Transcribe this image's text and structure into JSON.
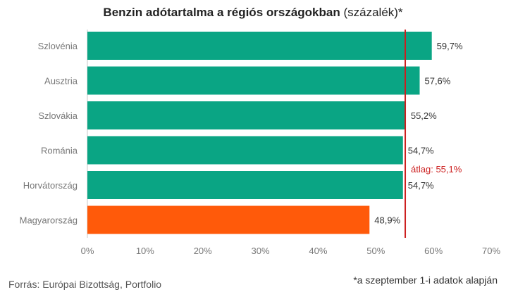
{
  "title": {
    "bold": "Benzin adótartalma a régiós országokban",
    "normal": "(százalék)*"
  },
  "source": "Forrás: Európai Bizottság, Portfolio",
  "footnote": "*a szeptember 1-i adatok alapján",
  "colors": {
    "bar": "#0aa584",
    "highlight": "#ff5a0a",
    "average_line": "#cc1f1f",
    "axis_text": "#777777",
    "label_text": "#333333"
  },
  "chart_data": {
    "type": "bar",
    "orientation": "horizontal",
    "title": "Benzin adótartalma a régiós országokban (százalék)*",
    "categories": [
      "Szlovénia",
      "Ausztria",
      "Szlovákia",
      "Románia",
      "Horvátország",
      "Magyarország"
    ],
    "values": [
      59.7,
      57.6,
      55.2,
      54.7,
      54.7,
      48.9
    ],
    "value_labels": [
      "59,7%",
      "57,6%",
      "55,2%",
      "54,7%",
      "54,7%",
      "48,9%"
    ],
    "highlight_category": "Magyarország",
    "xlim": [
      0,
      70
    ],
    "x_ticks": [
      0,
      10,
      20,
      30,
      40,
      50,
      60,
      70
    ],
    "x_tick_labels": [
      "0%",
      "10%",
      "20%",
      "30%",
      "40%",
      "50%",
      "60%",
      "70%"
    ],
    "average": {
      "value": 55.1,
      "label": "átlag: 55,1%"
    },
    "grid": false,
    "legend": "none"
  }
}
